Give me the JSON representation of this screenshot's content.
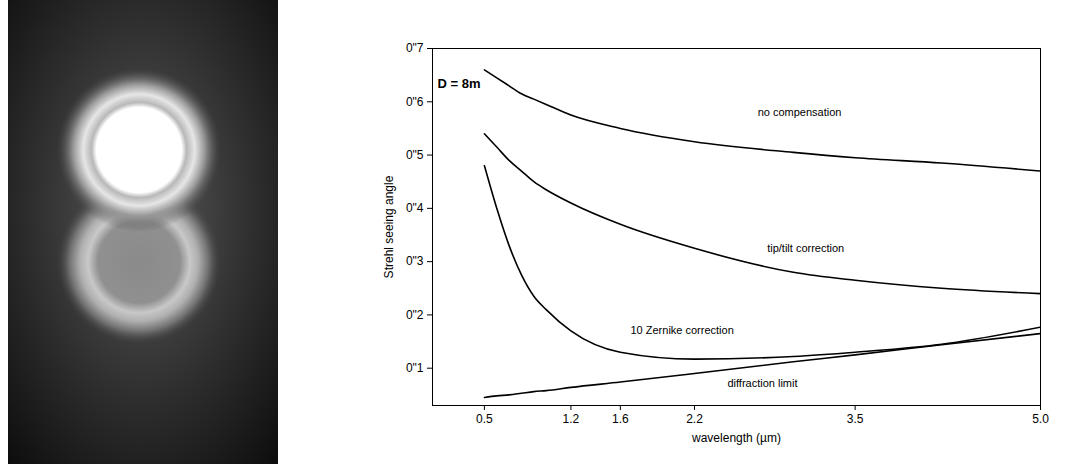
{
  "chart_data": {
    "type": "line",
    "title": "D = 8m",
    "xlabel": "wavelength (µm)",
    "ylabel": "Strehl seeing angle",
    "x": [
      0.5,
      0.6,
      0.7,
      0.8,
      0.9,
      1.0,
      1.2,
      1.6,
      2.2,
      3.0,
      3.5,
      4.2,
      5.0
    ],
    "series": [
      {
        "name": "no compensation",
        "color": "#000000",
        "values": [
          0.66,
          0.645,
          0.63,
          0.615,
          0.605,
          0.595,
          0.575,
          0.55,
          0.525,
          0.505,
          0.495,
          0.485,
          0.47
        ]
      },
      {
        "name": "tip/tilt correction",
        "color": "#000000",
        "values": [
          0.54,
          0.515,
          0.49,
          0.47,
          0.45,
          0.435,
          0.41,
          0.37,
          0.325,
          0.28,
          0.265,
          0.25,
          0.24
        ]
      },
      {
        "name": "10 Zernike correction",
        "color": "#000000",
        "values": [
          0.48,
          0.4,
          0.33,
          0.275,
          0.235,
          0.21,
          0.17,
          0.13,
          0.117,
          0.122,
          0.13,
          0.145,
          0.177
        ]
      },
      {
        "name": "diffraction limit",
        "color": "#000000",
        "values": [
          0.045,
          0.048,
          0.05,
          0.053,
          0.056,
          0.058,
          0.064,
          0.074,
          0.09,
          0.112,
          0.125,
          0.144,
          0.165
        ]
      }
    ],
    "xlim": [
      0.08,
      5.0
    ],
    "xticks": [
      0.5,
      1.2,
      1.6,
      2.2,
      3.5,
      {
        "value": 5,
        "label": "5.0"
      }
    ],
    "ylim": [
      0.03,
      0.7
    ],
    "yticks": [
      {
        "value": 0.1,
        "label": "0\"1"
      },
      {
        "value": 0.2,
        "label": "0\"2"
      },
      {
        "value": 0.3,
        "label": "0\"3"
      },
      {
        "value": 0.4,
        "label": "0\"4"
      },
      {
        "value": 0.5,
        "label": "0\"5"
      },
      {
        "value": 0.6,
        "label": "0\"6"
      },
      {
        "value": 0.7,
        "label": "0\"7"
      }
    ],
    "grid": false,
    "annotations": [
      {
        "text": "no compensation",
        "x": 3.05,
        "y": 0.58
      },
      {
        "text": "tip/tilt correction",
        "x": 3.1,
        "y": 0.325
      },
      {
        "text": "10 Zernike correction",
        "x": 2.1,
        "y": 0.17
      },
      {
        "text": "diffraction limit",
        "x": 2.75,
        "y": 0.072
      }
    ]
  }
}
